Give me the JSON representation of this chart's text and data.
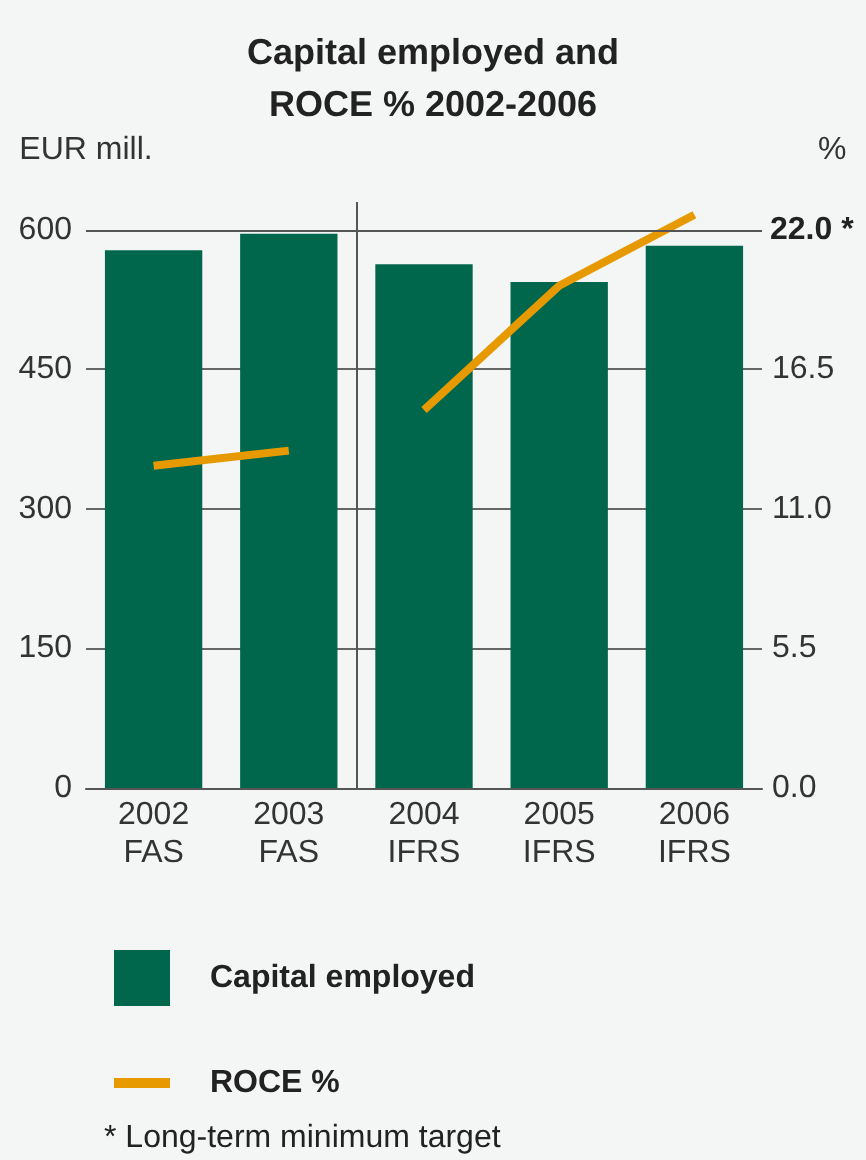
{
  "chart_data": {
    "type": "bar",
    "title": "Capital employed and\nROCE % 2002-2006",
    "ylabel": "EUR mill.",
    "y2label": "%",
    "x": [
      2002,
      2003,
      2004,
      2005,
      2006
    ],
    "xlim": [
      2001.5,
      2006.5
    ],
    "xticks": [
      {
        "value": 2002,
        "label": "2002\nFAS"
      },
      {
        "value": 2003,
        "label": "2003\nFAS"
      },
      {
        "value": 2004,
        "label": "2004\nIFRS"
      },
      {
        "value": 2005,
        "label": "2005\nIFRS"
      },
      {
        "value": 2006,
        "label": "2006\nIFRS"
      }
    ],
    "ylim": [
      0,
      630
    ],
    "yticks": [
      0,
      150,
      300,
      450,
      600
    ],
    "y2lim": [
      0,
      23.1
    ],
    "y2ticks": [
      {
        "value": 0,
        "label": "0.0"
      },
      5.5,
      {
        "value": 11,
        "label": "11.0"
      },
      16.5,
      {
        "value": 22,
        "label": null
      }
    ],
    "series": [
      {
        "name": "Capital employed",
        "color": "#00664c",
        "values": [
          578,
          596,
          563,
          544,
          583
        ]
      },
      {
        "name": "ROCE %",
        "type": "line",
        "axis": "y2",
        "color": "#e69a00",
        "x": [
          2002,
          2003,
          2003.5,
          2004,
          2005,
          2006
        ],
        "values": [
          12.7,
          13.3,
          null,
          14.9,
          19.8,
          22.6
        ]
      }
    ],
    "ref_lines": [
      {
        "axis": "x",
        "value": 2003.5,
        "color": "#555555"
      },
      {
        "axis": "y2",
        "value": 22,
        "label": "22.0 *",
        "color": "#555555"
      }
    ],
    "grid": "y",
    "legend": "bottom",
    "marker": "none",
    "line_style": "solid",
    "annotations": [
      "* Long-term minimum target"
    ]
  }
}
